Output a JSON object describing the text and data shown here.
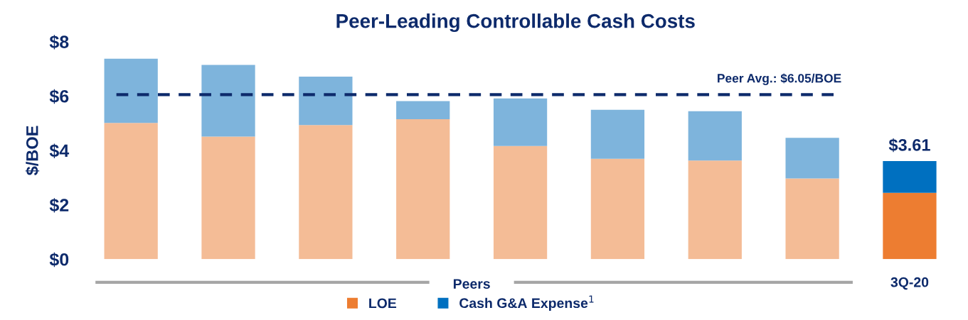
{
  "chart_data": {
    "type": "bar",
    "title": "Peer-Leading Controllable Cash Costs",
    "ylabel": "$/BOE",
    "categories": [
      null,
      null,
      null,
      null,
      null,
      null,
      null,
      null,
      "3Q-20"
    ],
    "stacked": true,
    "series": [
      {
        "name": "LOE",
        "color": "#ed7d31",
        "colors": [
          "#f4bc96",
          "#f4bc96",
          "#f4bc96",
          "#f4bc96",
          "#f4bc96",
          "#f4bc96",
          "#f4bc96",
          "#f4bc96",
          "#ed7d31"
        ],
        "values": [
          5.01,
          4.51,
          4.93,
          5.15,
          4.16,
          3.69,
          3.63,
          2.97,
          2.44
        ]
      },
      {
        "name": "Cash G&A Expense$^{1}$",
        "color": "#0070c0",
        "colors": [
          "#7eb4dc",
          "#7eb4dc",
          "#7eb4dc",
          "#7eb4dc",
          "#7eb4dc",
          "#7eb4dc",
          "#7eb4dc",
          "#7eb4dc",
          "#0070c0"
        ],
        "values": [
          2.36,
          2.63,
          1.78,
          0.66,
          1.75,
          1.8,
          1.81,
          1.49,
          1.17
        ]
      }
    ],
    "totals": [
      null,
      null,
      null,
      null,
      null,
      null,
      null,
      null,
      "$3.61"
    ],
    "ylim": [
      0,
      8
    ],
    "yticks": [
      {
        "value": 0,
        "label": "$0"
      },
      {
        "value": 2,
        "label": "$2"
      },
      {
        "value": 4,
        "label": "$4"
      },
      {
        "value": 6,
        "label": "$6"
      },
      {
        "value": 8,
        "label": "$8"
      }
    ],
    "ref_lines": [
      {
        "axis": "y",
        "value": 6.05,
        "label": "Peer Avg.: $6.05/BOE",
        "color": "#0d2a6b",
        "line_style": "dashed"
      }
    ],
    "annotations": [
      "Peers"
    ],
    "grid": false,
    "legend": "bottom"
  }
}
